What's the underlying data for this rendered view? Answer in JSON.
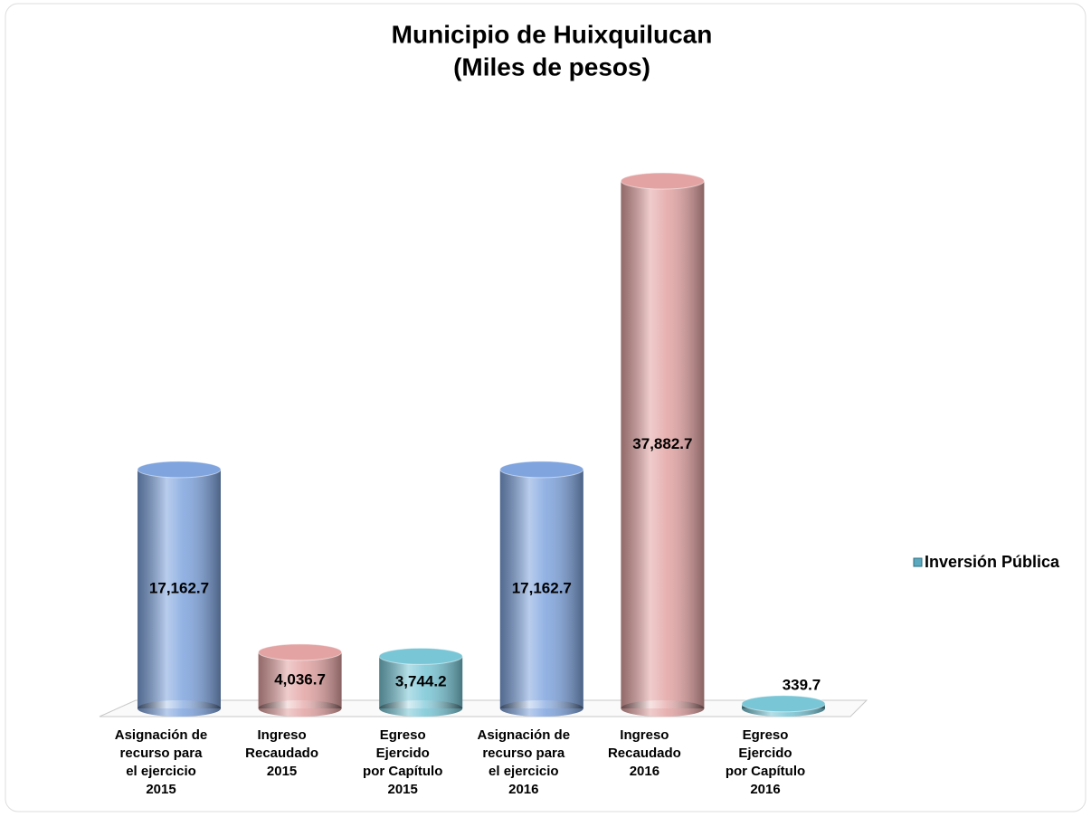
{
  "chart_data": {
    "type": "bar3d",
    "title": [
      "Municipio de Huixquilucan",
      "(Miles de pesos)"
    ],
    "categories": [
      [
        "Asignación de",
        "recurso para",
        "el ejercicio",
        "2015"
      ],
      [
        "Ingreso",
        "Recaudado",
        "2015"
      ],
      [
        "Egreso",
        "Ejercido",
        "por Capítulo",
        "2015"
      ],
      [
        "Asignación de",
        "recurso para",
        "el ejercicio",
        "2016"
      ],
      [
        "Ingreso",
        "Recaudado",
        "2016"
      ],
      [
        "Egreso",
        "Ejercido",
        "por Capítulo",
        "2016"
      ]
    ],
    "series": [
      {
        "name": "Inversión Pública",
        "color": "#5aa9bf",
        "values": [
          17162.7,
          4036.7,
          3744.2,
          17162.7,
          37882.7,
          339.7
        ],
        "value_labels": [
          "17,162.7",
          "4,036.7",
          "3,744.2",
          "17,162.7",
          "37,882.7",
          "339.7"
        ],
        "colors": [
          "#7fa4de",
          "#e3a3a3",
          "#79c6d6",
          "#7fa4de",
          "#e3a3a3",
          "#79c6d6"
        ]
      }
    ],
    "legend": "right"
  }
}
